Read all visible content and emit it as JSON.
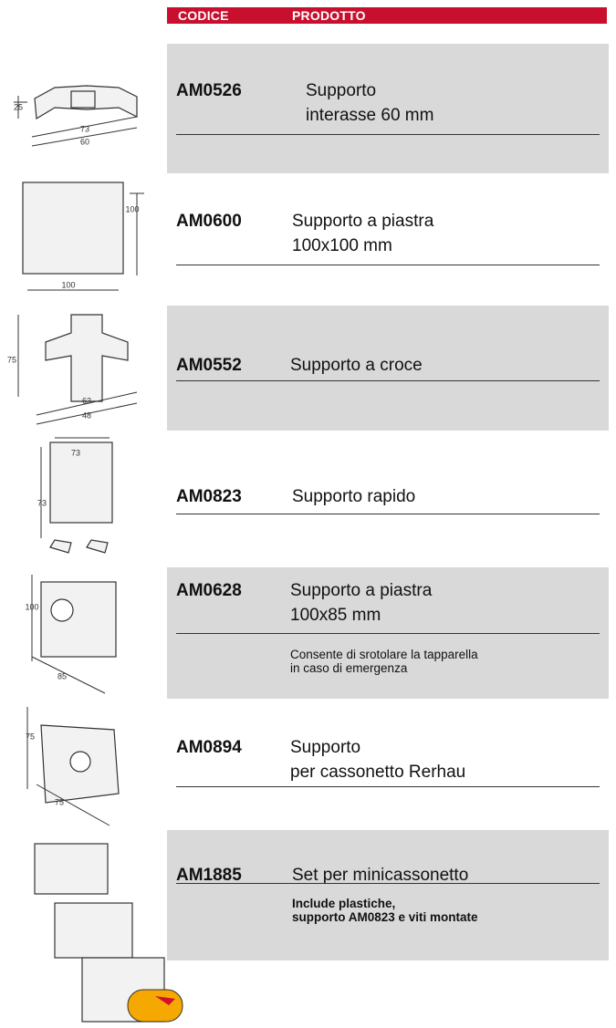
{
  "header": {
    "code": "CODICE",
    "product": "PRODOTTO"
  },
  "items": [
    {
      "code": "AM0526",
      "name": [
        "Supporto",
        "interasse 60 mm"
      ],
      "dimensions": [
        "25",
        "73",
        "60"
      ]
    },
    {
      "code": "AM0600",
      "name": [
        "Supporto a piastra",
        "100x100 mm"
      ],
      "dimensions": [
        "100",
        "100"
      ]
    },
    {
      "code": "AM0552",
      "name": [
        "Supporto a croce"
      ],
      "dimensions": [
        "75",
        "63",
        "48"
      ]
    },
    {
      "code": "AM0823",
      "name": [
        "Supporto rapido"
      ],
      "dimensions": [
        "73",
        "73"
      ]
    },
    {
      "code": "AM0628",
      "name": [
        "Supporto a piastra",
        "100x85 mm"
      ],
      "note": [
        "Consente di srotolare la tapparella",
        "in caso di emergenza"
      ],
      "dimensions": [
        "100",
        "85"
      ]
    },
    {
      "code": "AM0894",
      "name": [
        "Supporto",
        "per cassonetto Rerhau"
      ],
      "dimensions": [
        "75",
        "75"
      ]
    },
    {
      "code": "AM1885",
      "name": [
        "Set per minicassonetto"
      ],
      "note_bold": [
        "Include plastiche,",
        "supporto AM0823 e viti montate"
      ],
      "dimensions": []
    }
  ]
}
